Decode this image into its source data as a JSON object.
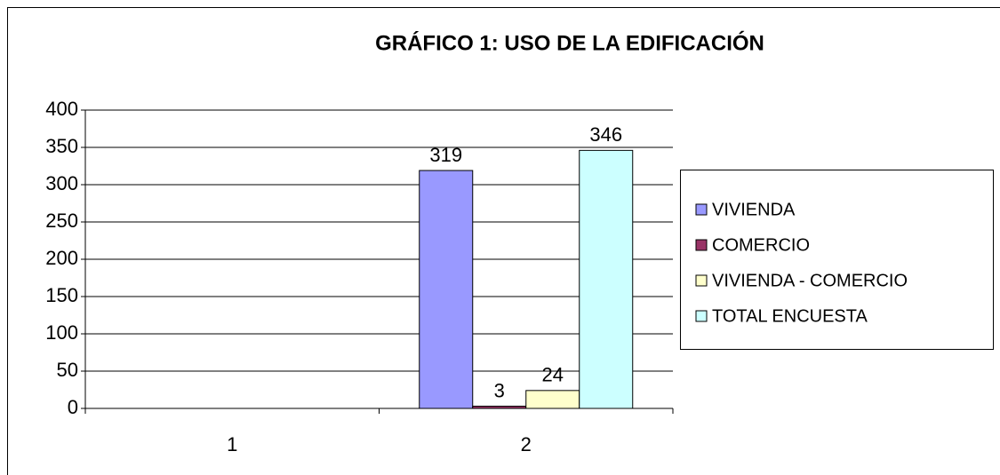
{
  "chart_data": {
    "type": "bar",
    "title": "GRÁFICO 1: USO DE LA EDIFICACIÓN",
    "categories": [
      "1",
      "2"
    ],
    "series": [
      {
        "name": "VIVIENDA",
        "color": "#9999ff",
        "values": [
          null,
          319
        ]
      },
      {
        "name": "COMERCIO",
        "color": "#993366",
        "values": [
          null,
          3
        ]
      },
      {
        "name": "VIVIENDA - COMERCIO",
        "color": "#ffffcc",
        "values": [
          null,
          24
        ]
      },
      {
        "name": "TOTAL ENCUESTA",
        "color": "#ccffff",
        "values": [
          null,
          346
        ]
      }
    ],
    "ylim": [
      0,
      400
    ],
    "yticks": [
      0,
      50,
      100,
      150,
      200,
      250,
      300,
      350,
      400
    ],
    "grid": true,
    "legend": "right"
  }
}
